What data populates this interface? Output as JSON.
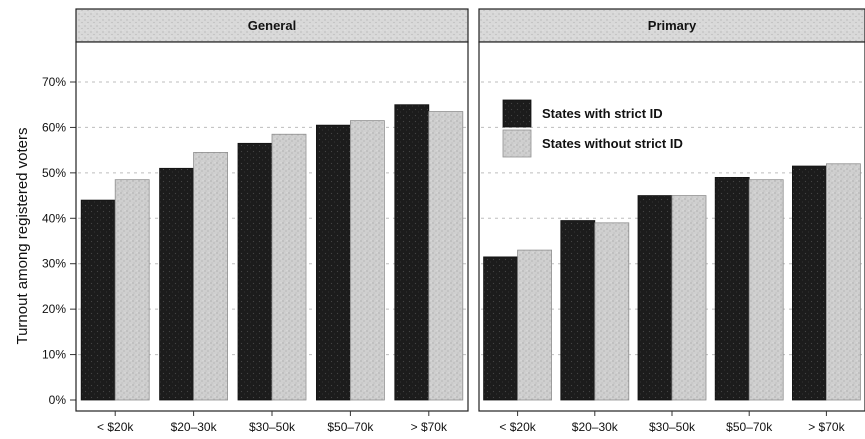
{
  "chart_data": {
    "type": "bar",
    "ylabel": "Turnout among registered voters",
    "ylim": [
      0,
      70
    ],
    "yticks": [
      "0%",
      "10%",
      "20%",
      "30%",
      "40%",
      "50%",
      "60%",
      "70%"
    ],
    "categories": [
      "< $20k",
      "$20–30k",
      "$30–50k",
      "$50–70k",
      "> $70k"
    ],
    "legend": {
      "position": "top-left of second panel",
      "entries": [
        "States with strict ID",
        "States without strict ID"
      ]
    },
    "grid": true,
    "colors": {
      "strict": "#1f1f1f",
      "nonstrict": "#c9c9c9",
      "strip": "#d7d7d7"
    },
    "panels": [
      {
        "title": "General",
        "series": [
          {
            "name": "States with strict ID",
            "values": [
              44,
              51,
              56.5,
              60.5,
              65
            ]
          },
          {
            "name": "States without strict ID",
            "values": [
              48.5,
              54.5,
              58.5,
              61.5,
              63.5
            ]
          }
        ]
      },
      {
        "title": "Primary",
        "series": [
          {
            "name": "States with strict ID",
            "values": [
              31.5,
              39.5,
              45,
              49,
              51.5
            ]
          },
          {
            "name": "States without strict ID",
            "values": [
              33,
              39,
              45,
              48.5,
              52
            ]
          }
        ]
      }
    ]
  }
}
